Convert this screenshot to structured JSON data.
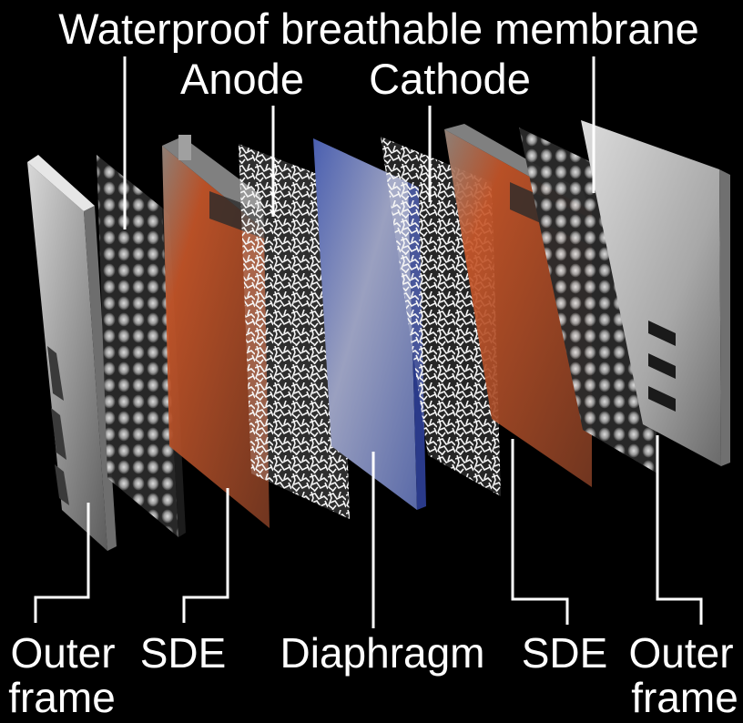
{
  "labels": {
    "membrane": "Waterproof breathable membrane",
    "anode": "Anode",
    "cathode": "Cathode",
    "outer_left_line1": "Outer",
    "outer_left_line2": "frame",
    "sde_left": "SDE",
    "diaphragm": "Diaphragm",
    "sde_right": "SDE",
    "outer_right_line1": "Outer",
    "outer_right_line2": "frame"
  },
  "colors": {
    "background": "#000000",
    "label": "#ffffff",
    "frame": "#b9b9b9",
    "sde_orange": "#c8572a",
    "diaphragm_blue": "#5a70b8",
    "foam": "#f2f2f2"
  }
}
